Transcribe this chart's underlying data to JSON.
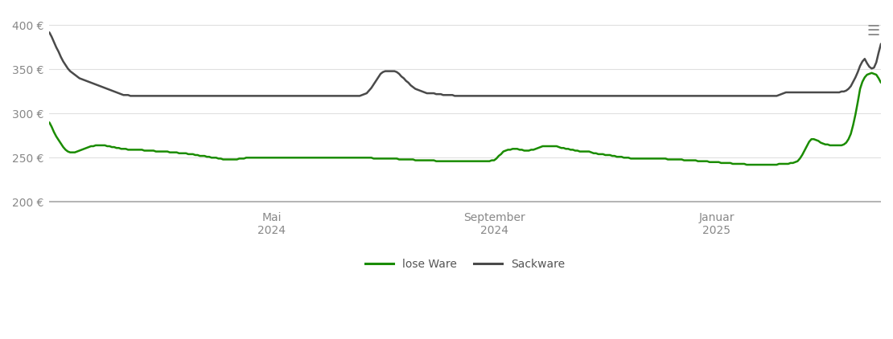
{
  "ylim": [
    195,
    415
  ],
  "yticks": [
    200,
    250,
    300,
    350,
    400
  ],
  "ytick_labels": [
    "200 €",
    "250 €",
    "300 €",
    "350 €",
    "400 €"
  ],
  "background_color": "#ffffff",
  "grid_color": "#e0e0e0",
  "line_lose_color": "#1a8c00",
  "line_sack_color": "#4a4a4a",
  "legend_labels": [
    "lose Ware",
    "Sackware"
  ],
  "lose_ware": [
    290,
    285,
    279,
    274,
    270,
    266,
    262,
    259,
    257,
    256,
    256,
    256,
    257,
    258,
    259,
    260,
    261,
    262,
    263,
    263,
    264,
    264,
    264,
    264,
    264,
    263,
    263,
    262,
    262,
    261,
    261,
    260,
    260,
    260,
    259,
    259,
    259,
    259,
    259,
    259,
    259,
    258,
    258,
    258,
    258,
    258,
    257,
    257,
    257,
    257,
    257,
    257,
    256,
    256,
    256,
    256,
    255,
    255,
    255,
    255,
    254,
    254,
    254,
    253,
    253,
    252,
    252,
    252,
    251,
    251,
    250,
    250,
    250,
    249,
    249,
    248,
    248,
    248,
    248,
    248,
    248,
    248,
    249,
    249,
    249,
    250,
    250,
    250,
    250,
    250,
    250,
    250,
    250,
    250,
    250,
    250,
    250,
    250,
    250,
    250,
    250,
    250,
    250,
    250,
    250,
    250,
    250,
    250,
    250,
    250,
    250,
    250,
    250,
    250,
    250,
    250,
    250,
    250,
    250,
    250,
    250,
    250,
    250,
    250,
    250,
    250,
    250,
    250,
    250,
    250,
    250,
    250,
    250,
    250,
    250,
    250,
    250,
    250,
    250,
    250,
    249,
    249,
    249,
    249,
    249,
    249,
    249,
    249,
    249,
    249,
    249,
    248,
    248,
    248,
    248,
    248,
    248,
    248,
    247,
    247,
    247,
    247,
    247,
    247,
    247,
    247,
    247,
    246,
    246,
    246,
    246,
    246,
    246,
    246,
    246,
    246,
    246,
    246,
    246,
    246,
    246,
    246,
    246,
    246,
    246,
    246,
    246,
    246,
    246,
    246,
    246,
    247,
    247,
    249,
    252,
    254,
    257,
    258,
    259,
    259,
    260,
    260,
    260,
    259,
    259,
    258,
    258,
    258,
    259,
    259,
    260,
    261,
    262,
    263,
    263,
    263,
    263,
    263,
    263,
    263,
    262,
    261,
    261,
    260,
    260,
    259,
    259,
    258,
    258,
    257,
    257,
    257,
    257,
    257,
    256,
    255,
    255,
    254,
    254,
    254,
    253,
    253,
    253,
    252,
    252,
    251,
    251,
    251,
    250,
    250,
    250,
    249,
    249,
    249,
    249,
    249,
    249,
    249,
    249,
    249,
    249,
    249,
    249,
    249,
    249,
    249,
    249,
    248,
    248,
    248,
    248,
    248,
    248,
    248,
    247,
    247,
    247,
    247,
    247,
    247,
    246,
    246,
    246,
    246,
    246,
    245,
    245,
    245,
    245,
    245,
    244,
    244,
    244,
    244,
    244,
    243,
    243,
    243,
    243,
    243,
    243,
    242,
    242,
    242,
    242,
    242,
    242,
    242,
    242,
    242,
    242,
    242,
    242,
    242,
    242,
    243,
    243,
    243,
    243,
    243,
    244,
    244,
    245,
    246,
    249,
    253,
    258,
    263,
    268,
    271,
    271,
    270,
    269,
    267,
    266,
    265,
    265,
    264,
    264,
    264,
    264,
    264,
    264,
    265,
    267,
    271,
    277,
    287,
    299,
    313,
    328,
    336,
    341,
    344,
    345,
    346,
    345,
    344,
    340,
    335
  ],
  "sack_ware": [
    392,
    387,
    381,
    375,
    370,
    364,
    359,
    355,
    351,
    348,
    346,
    344,
    342,
    340,
    339,
    338,
    337,
    336,
    335,
    334,
    333,
    332,
    331,
    330,
    329,
    328,
    327,
    326,
    325,
    324,
    323,
    322,
    321,
    321,
    321,
    320,
    320,
    320,
    320,
    320,
    320,
    320,
    320,
    320,
    320,
    320,
    320,
    320,
    320,
    320,
    320,
    320,
    320,
    320,
    320,
    320,
    320,
    320,
    320,
    320,
    320,
    320,
    320,
    320,
    320,
    320,
    320,
    320,
    320,
    320,
    320,
    320,
    320,
    320,
    320,
    320,
    320,
    320,
    320,
    320,
    320,
    320,
    320,
    320,
    320,
    320,
    320,
    320,
    320,
    320,
    320,
    320,
    320,
    320,
    320,
    320,
    320,
    320,
    320,
    320,
    320,
    320,
    320,
    320,
    320,
    320,
    320,
    320,
    320,
    320,
    320,
    320,
    320,
    320,
    320,
    320,
    320,
    320,
    320,
    320,
    320,
    320,
    320,
    320,
    320,
    320,
    320,
    320,
    320,
    320,
    320,
    320,
    320,
    320,
    320,
    321,
    322,
    323,
    326,
    329,
    333,
    337,
    341,
    345,
    347,
    348,
    348,
    348,
    348,
    348,
    347,
    345,
    342,
    340,
    337,
    335,
    332,
    330,
    328,
    327,
    326,
    325,
    324,
    323,
    323,
    323,
    323,
    322,
    322,
    322,
    321,
    321,
    321,
    321,
    321,
    320,
    320,
    320,
    320,
    320,
    320,
    320,
    320,
    320,
    320,
    320,
    320,
    320,
    320,
    320,
    320,
    320,
    320,
    320,
    320,
    320,
    320,
    320,
    320,
    320,
    320,
    320,
    320,
    320,
    320,
    320,
    320,
    320,
    320,
    320,
    320,
    320,
    320,
    320,
    320,
    320,
    320,
    320,
    320,
    320,
    320,
    320,
    320,
    320,
    320,
    320,
    320,
    320,
    320,
    320,
    320,
    320,
    320,
    320,
    320,
    320,
    320,
    320,
    320,
    320,
    320,
    320,
    320,
    320,
    320,
    320,
    320,
    320,
    320,
    320,
    320,
    320,
    320,
    320,
    320,
    320,
    320,
    320,
    320,
    320,
    320,
    320,
    320,
    320,
    320,
    320,
    320,
    320,
    320,
    320,
    320,
    320,
    320,
    320,
    320,
    320,
    320,
    320,
    320,
    320,
    320,
    320,
    320,
    320,
    320,
    320,
    320,
    320,
    320,
    320,
    320,
    320,
    320,
    320,
    320,
    320,
    320,
    320,
    320,
    320,
    320,
    320,
    320,
    320,
    320,
    320,
    320,
    320,
    320,
    320,
    320,
    320,
    320,
    320,
    320,
    321,
    322,
    323,
    324,
    324,
    324,
    324,
    324,
    324,
    324,
    324,
    324,
    324,
    324,
    324,
    324,
    324,
    324,
    324,
    324,
    324,
    324,
    324,
    324,
    324,
    324,
    324,
    325,
    325,
    326,
    328,
    331,
    336,
    341,
    347,
    354,
    359,
    362,
    357,
    353,
    351,
    352,
    358,
    369,
    379
  ]
}
